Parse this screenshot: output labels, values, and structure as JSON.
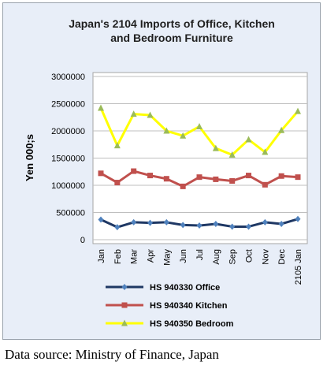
{
  "chart_data": {
    "type": "line",
    "title_lines": [
      "Japan's 2104 Imports of Office, Kitchen",
      "and Bedroom Furniture"
    ],
    "ylabel": "Yen 000;s",
    "xlabel": "",
    "ylim": [
      0,
      3000000
    ],
    "y_ticks": [
      0,
      500000,
      1000000,
      1500000,
      2000000,
      2500000,
      3000000
    ],
    "y_tick_labels": [
      "0",
      "500000",
      "1000000",
      "1500000",
      "2000000",
      "2500000",
      "3000000"
    ],
    "grid": "horizontal",
    "legend_position": "bottom",
    "categories": [
      "Jan",
      "Feb",
      "Mar",
      "Apr",
      "May",
      "Jun",
      "Jul",
      "Aug",
      "Sep",
      "Oct",
      "Nov",
      "Dec",
      "2105 Jan"
    ],
    "series": [
      {
        "name": "HS 940330 Office",
        "color": "#1f3864",
        "marker": "diamond",
        "values": [
          370000,
          230000,
          320000,
          310000,
          320000,
          270000,
          260000,
          290000,
          240000,
          240000,
          320000,
          290000,
          380000
        ]
      },
      {
        "name": "HS 940340 Kitchen",
        "color": "#c0504d",
        "marker": "square",
        "values": [
          1220000,
          1050000,
          1260000,
          1180000,
          1120000,
          980000,
          1150000,
          1110000,
          1080000,
          1180000,
          1010000,
          1170000,
          1150000
        ]
      },
      {
        "name": "HS 940350 Bedroom",
        "color": "#ffff00",
        "marker": "triangle",
        "marker_color": "#9bbb59",
        "values": [
          2420000,
          1730000,
          2310000,
          2290000,
          2000000,
          1910000,
          2080000,
          1680000,
          1560000,
          1840000,
          1610000,
          2010000,
          2360000
        ]
      }
    ]
  },
  "source_note": "Data source: Ministry of Finance, Japan"
}
